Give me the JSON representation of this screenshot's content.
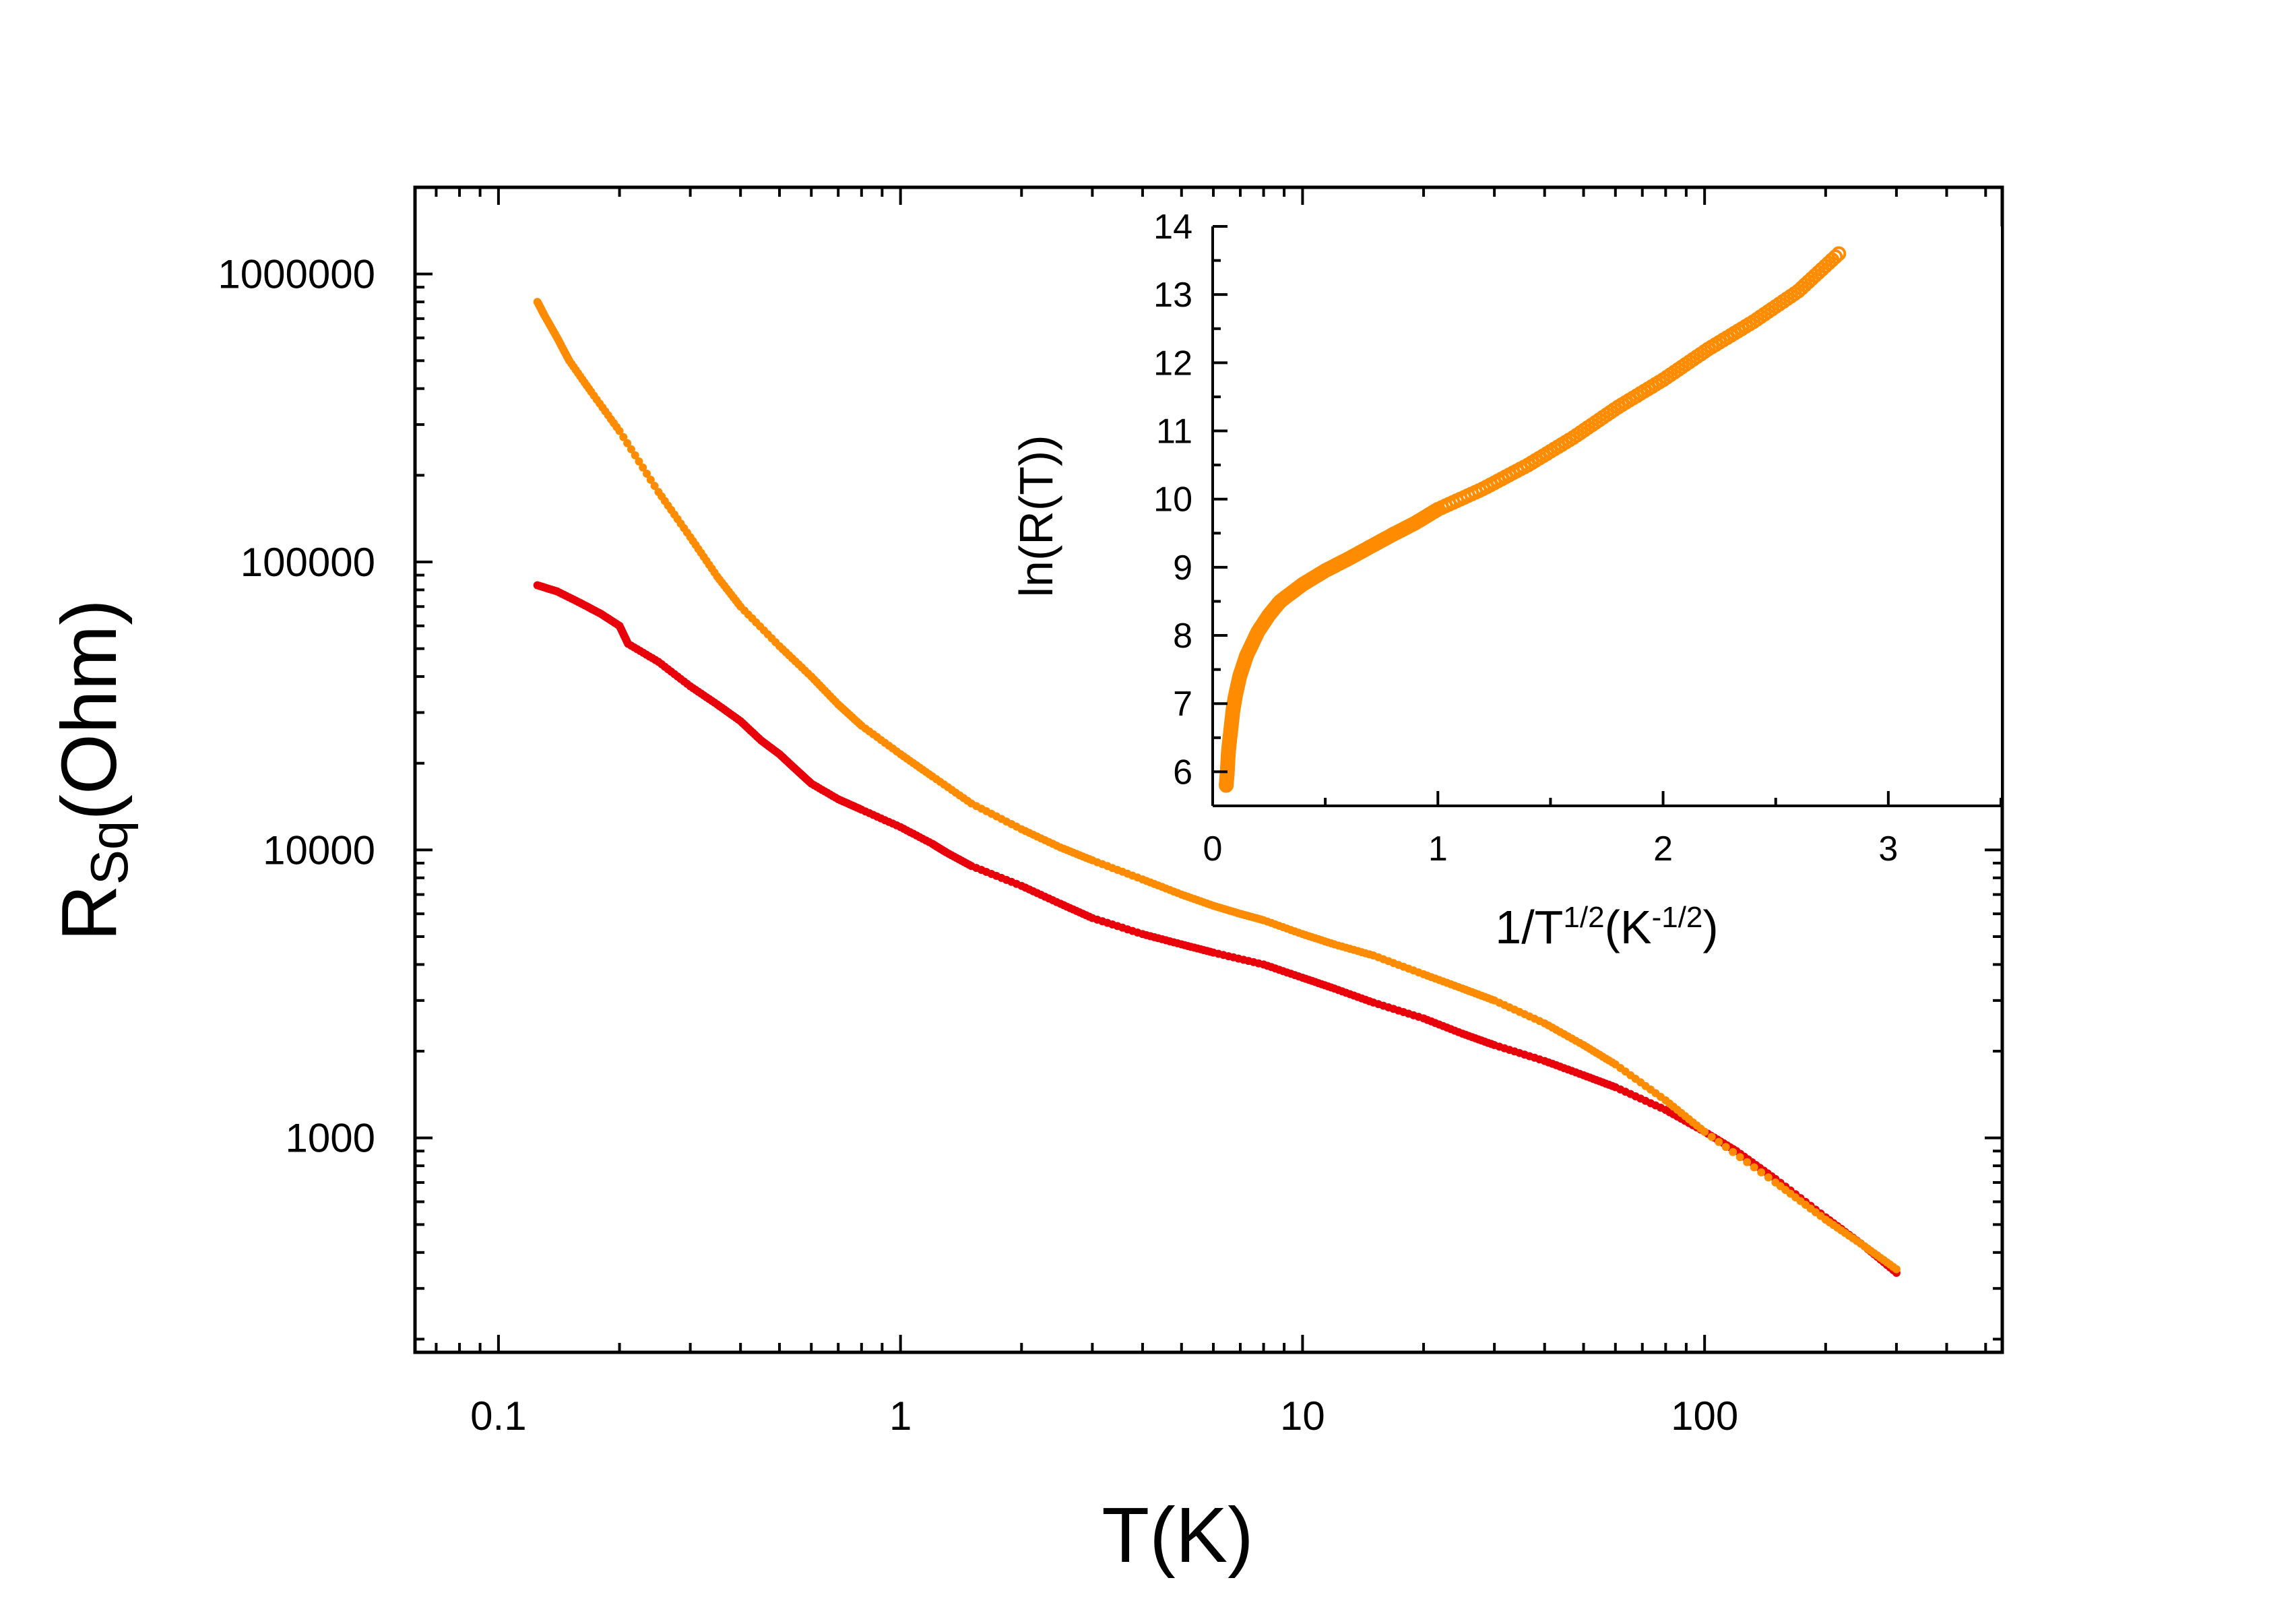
{
  "chart_data": [
    {
      "type": "scatter",
      "scale": "log-log",
      "xlabel": "T(K)",
      "ylabel": "R_Sq(Ohm)",
      "ylabel_main": "R",
      "ylabel_sub": "Sq",
      "ylabel_tail": "(Ohm)",
      "xlim": [
        0.062,
        550
      ],
      "ylim": [
        180,
        2000000
      ],
      "x_ticks": [
        {
          "value": 0.1,
          "label": "0.1"
        },
        {
          "value": 1,
          "label": "1"
        },
        {
          "value": 10,
          "label": "10"
        },
        {
          "value": 100,
          "label": "100"
        }
      ],
      "y_ticks": [
        {
          "value": 1000,
          "label": "1000"
        },
        {
          "value": 10000,
          "label": "10000"
        },
        {
          "value": 100000,
          "label": "100000"
        },
        {
          "value": 1000000,
          "label": "1000000"
        }
      ],
      "series": [
        {
          "name": "orange",
          "color": "#ff8c00",
          "points": [
            [
              0.125,
              800000
            ],
            [
              0.13,
              720000
            ],
            [
              0.14,
              600000
            ],
            [
              0.15,
              500000
            ],
            [
              0.17,
              390000
            ],
            [
              0.2,
              285000
            ],
            [
              0.25,
              175000
            ],
            [
              0.3,
              122000
            ],
            [
              0.35,
              89000
            ],
            [
              0.4,
              70000
            ],
            [
              0.5,
              51000
            ],
            [
              0.6,
              40000
            ],
            [
              0.7,
              32000
            ],
            [
              0.8,
              27000
            ],
            [
              1.0,
              21500
            ],
            [
              1.2,
              18000
            ],
            [
              1.5,
              14500
            ],
            [
              2.0,
              11800
            ],
            [
              2.5,
              10200
            ],
            [
              3.0,
              9200
            ],
            [
              4.0,
              7900
            ],
            [
              5.0,
              7000
            ],
            [
              6.0,
              6400
            ],
            [
              7.0,
              6000
            ],
            [
              8.0,
              5700
            ],
            [
              10.0,
              5100
            ],
            [
              12.0,
              4700
            ],
            [
              15.0,
              4300
            ],
            [
              20.0,
              3700
            ],
            [
              25.0,
              3300
            ],
            [
              30.0,
              3000
            ],
            [
              40.0,
              2500
            ],
            [
              50.0,
              2100
            ],
            [
              60.0,
              1800
            ],
            [
              80.0,
              1350
            ],
            [
              100.0,
              1050
            ],
            [
              150.0,
              700
            ],
            [
              200.0,
              520
            ],
            [
              250.0,
              420
            ],
            [
              300.0,
              350
            ]
          ]
        },
        {
          "name": "red",
          "color": "#e8000b",
          "points": [
            [
              0.125,
              83000
            ],
            [
              0.14,
              79000
            ],
            [
              0.16,
              72000
            ],
            [
              0.18,
              66000
            ],
            [
              0.2,
              60000
            ],
            [
              0.21,
              52000
            ],
            [
              0.25,
              45000
            ],
            [
              0.3,
              37000
            ],
            [
              0.35,
              32000
            ],
            [
              0.4,
              28000
            ],
            [
              0.45,
              24000
            ],
            [
              0.5,
              21500
            ],
            [
              0.55,
              19000
            ],
            [
              0.6,
              17000
            ],
            [
              0.7,
              15000
            ],
            [
              0.8,
              13800
            ],
            [
              1.0,
              12000
            ],
            [
              1.2,
              10500
            ],
            [
              1.3,
              9800
            ],
            [
              1.5,
              8800
            ],
            [
              2.0,
              7500
            ],
            [
              2.5,
              6500
            ],
            [
              3.0,
              5800
            ],
            [
              4.0,
              5100
            ],
            [
              5.0,
              4700
            ],
            [
              6.0,
              4400
            ],
            [
              8.0,
              4000
            ],
            [
              10.0,
              3600
            ],
            [
              12.0,
              3300
            ],
            [
              15.0,
              2950
            ],
            [
              20.0,
              2600
            ],
            [
              25.0,
              2300
            ],
            [
              30.0,
              2100
            ],
            [
              40.0,
              1850
            ],
            [
              50.0,
              1650
            ],
            [
              60.0,
              1500
            ],
            [
              80.0,
              1250
            ],
            [
              100.0,
              1050
            ],
            [
              120.0,
              900
            ],
            [
              150.0,
              720
            ],
            [
              200.0,
              530
            ],
            [
              250.0,
              420
            ],
            [
              300.0,
              340
            ]
          ]
        }
      ]
    },
    {
      "type": "scatter",
      "inset": true,
      "xlabel": "1/T^{1/2}(K^{-1/2})",
      "xlabel_a": "1/T",
      "xlabel_sup1": "1/2",
      "xlabel_b": "(K",
      "xlabel_sup2": "-1/2",
      "xlabel_c": ")",
      "ylabel": "ln(R(T))",
      "xlim": [
        0,
        3.5
      ],
      "ylim": [
        5.5,
        14
      ],
      "x_ticks": [
        {
          "value": 0,
          "label": "0"
        },
        {
          "value": 1,
          "label": "1"
        },
        {
          "value": 2,
          "label": "2"
        },
        {
          "value": 3,
          "label": "3"
        }
      ],
      "y_ticks": [
        {
          "value": 6,
          "label": "6"
        },
        {
          "value": 7,
          "label": "7"
        },
        {
          "value": 8,
          "label": "8"
        },
        {
          "value": 9,
          "label": "9"
        },
        {
          "value": 10,
          "label": "10"
        },
        {
          "value": 11,
          "label": "11"
        },
        {
          "value": 12,
          "label": "12"
        },
        {
          "value": 13,
          "label": "13"
        },
        {
          "value": 14,
          "label": "14"
        }
      ],
      "series": [
        {
          "name": "orange",
          "color": "#ff8c00",
          "points": [
            [
              0.06,
              5.8
            ],
            [
              0.065,
              6.0
            ],
            [
              0.07,
              6.3
            ],
            [
              0.08,
              6.6
            ],
            [
              0.09,
              6.9
            ],
            [
              0.1,
              7.1
            ],
            [
              0.12,
              7.4
            ],
            [
              0.15,
              7.7
            ],
            [
              0.2,
              8.05
            ],
            [
              0.25,
              8.3
            ],
            [
              0.3,
              8.5
            ],
            [
              0.4,
              8.75
            ],
            [
              0.5,
              8.95
            ],
            [
              0.6,
              9.12
            ],
            [
              0.7,
              9.3
            ],
            [
              0.8,
              9.48
            ],
            [
              0.9,
              9.65
            ],
            [
              1.0,
              9.85
            ],
            [
              1.2,
              10.15
            ],
            [
              1.4,
              10.5
            ],
            [
              1.6,
              10.9
            ],
            [
              1.8,
              11.35
            ],
            [
              2.0,
              11.75
            ],
            [
              2.2,
              12.2
            ],
            [
              2.4,
              12.6
            ],
            [
              2.6,
              13.05
            ],
            [
              2.78,
              13.6
            ]
          ]
        }
      ]
    }
  ]
}
